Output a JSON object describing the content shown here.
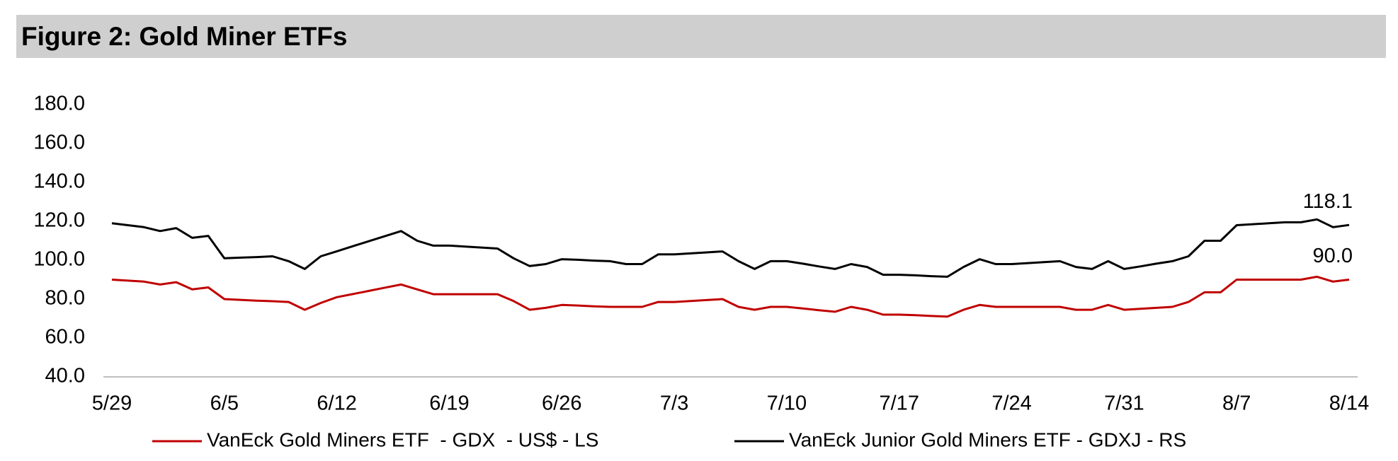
{
  "chart_data": {
    "type": "line",
    "title": "Figure 2: Gold Miner ETFs",
    "categories": [
      "5/29",
      null,
      null,
      null,
      null,
      null,
      null,
      "6/5",
      null,
      null,
      null,
      null,
      null,
      null,
      "6/12",
      null,
      null,
      null,
      null,
      null,
      null,
      "6/19",
      null,
      null,
      null,
      null,
      null,
      null,
      "6/26",
      null,
      null,
      null,
      null,
      null,
      null,
      "7/3",
      null,
      null,
      null,
      null,
      null,
      null,
      "7/10",
      null,
      null,
      null,
      null,
      null,
      null,
      "7/17",
      null,
      null,
      null,
      null,
      null,
      null,
      "7/24",
      null,
      null,
      null,
      null,
      null,
      null,
      "7/31",
      null,
      null,
      null,
      null,
      null,
      null,
      "8/7",
      null,
      null,
      null,
      null,
      null,
      null,
      "8/14"
    ],
    "series": [
      {
        "name": "VanEck Gold Miners ETF  - GDX  - US$ - LS",
        "color": "#c00000",
        "values": [
          90,
          89.5,
          89,
          87.5,
          88.7,
          85,
          86,
          80,
          79.6,
          79.2,
          78.9,
          78.5,
          74.5,
          78,
          81,
          82.6,
          84.2,
          85.9,
          87.5,
          85,
          82.5,
          82.5,
          82.5,
          82.5,
          82.5,
          79,
          74.5,
          75.5,
          77,
          76.7,
          76.3,
          76,
          76,
          76,
          78.5,
          78.5,
          79,
          79.5,
          80,
          76,
          74.5,
          76,
          76,
          75.2,
          74.3,
          73.5,
          76,
          74.5,
          72,
          72,
          71.7,
          71.3,
          71,
          74.5,
          77,
          76,
          76,
          76,
          76,
          76,
          74.5,
          74.5,
          77,
          74.5,
          75,
          75.5,
          76,
          78.5,
          83.5,
          83.5,
          90,
          90,
          90,
          90,
          90,
          91.5,
          89,
          90
        ],
        "value_labels": [
          null,
          null,
          null,
          null,
          null,
          null,
          null,
          null,
          null,
          null,
          null,
          null,
          null,
          null,
          null,
          null,
          null,
          null,
          null,
          null,
          null,
          null,
          null,
          null,
          null,
          null,
          null,
          null,
          null,
          null,
          null,
          null,
          null,
          null,
          null,
          null,
          null,
          null,
          null,
          null,
          null,
          null,
          null,
          null,
          null,
          null,
          null,
          null,
          null,
          null,
          null,
          null,
          null,
          null,
          null,
          null,
          null,
          null,
          null,
          null,
          null,
          null,
          null,
          null,
          null,
          null,
          null,
          null,
          null,
          null,
          null,
          null,
          null,
          null,
          null,
          null,
          null,
          "90.0"
        ]
      },
      {
        "name": "VanEck Junior Gold Miners ETF - GDXJ - RS",
        "color": "#000000",
        "values": [
          119,
          118,
          117,
          115,
          116.5,
          111.5,
          112.5,
          101,
          101.3,
          101.6,
          102,
          99.5,
          95.5,
          102,
          104.6,
          107.2,
          109.8,
          112.4,
          115,
          110,
          107.5,
          107.5,
          107,
          106.5,
          106,
          101,
          97,
          98,
          100.5,
          100.2,
          99.8,
          99.5,
          98,
          98,
          103,
          103,
          103.5,
          104,
          104.5,
          99.5,
          95.5,
          99.5,
          99.5,
          98.2,
          96.8,
          95.5,
          98,
          96.5,
          92.5,
          92.5,
          92.2,
          91.8,
          91.5,
          96.5,
          100.5,
          98,
          98,
          98.5,
          99,
          99.5,
          96.5,
          95.5,
          99.5,
          95.5,
          96.8,
          98.2,
          99.5,
          102,
          110,
          110,
          118,
          118.5,
          119,
          119.5,
          119.5,
          121,
          117,
          118.1
        ],
        "value_labels": [
          null,
          null,
          null,
          null,
          null,
          null,
          null,
          null,
          null,
          null,
          null,
          null,
          null,
          null,
          null,
          null,
          null,
          null,
          null,
          null,
          null,
          null,
          null,
          null,
          null,
          null,
          null,
          null,
          null,
          null,
          null,
          null,
          null,
          null,
          null,
          null,
          null,
          null,
          null,
          null,
          null,
          null,
          null,
          null,
          null,
          null,
          null,
          null,
          null,
          null,
          null,
          null,
          null,
          null,
          null,
          null,
          null,
          null,
          null,
          null,
          null,
          null,
          null,
          null,
          null,
          null,
          null,
          null,
          null,
          null,
          null,
          null,
          null,
          null,
          null,
          null,
          null,
          "118.1"
        ]
      }
    ],
    "ylim": [
      40,
      180
    ],
    "yticks": [
      {
        "value": 40,
        "label": "40.0"
      },
      {
        "value": 60,
        "label": "60.0"
      },
      {
        "value": 80,
        "label": "80.0"
      },
      {
        "value": 100,
        "label": "100.0"
      },
      {
        "value": 120,
        "label": "120.0"
      },
      {
        "value": 140,
        "label": "140.0"
      },
      {
        "value": 160,
        "label": "160.0"
      },
      {
        "value": 180,
        "label": "180.0"
      }
    ],
    "grid": false,
    "legend": "bottom"
  }
}
